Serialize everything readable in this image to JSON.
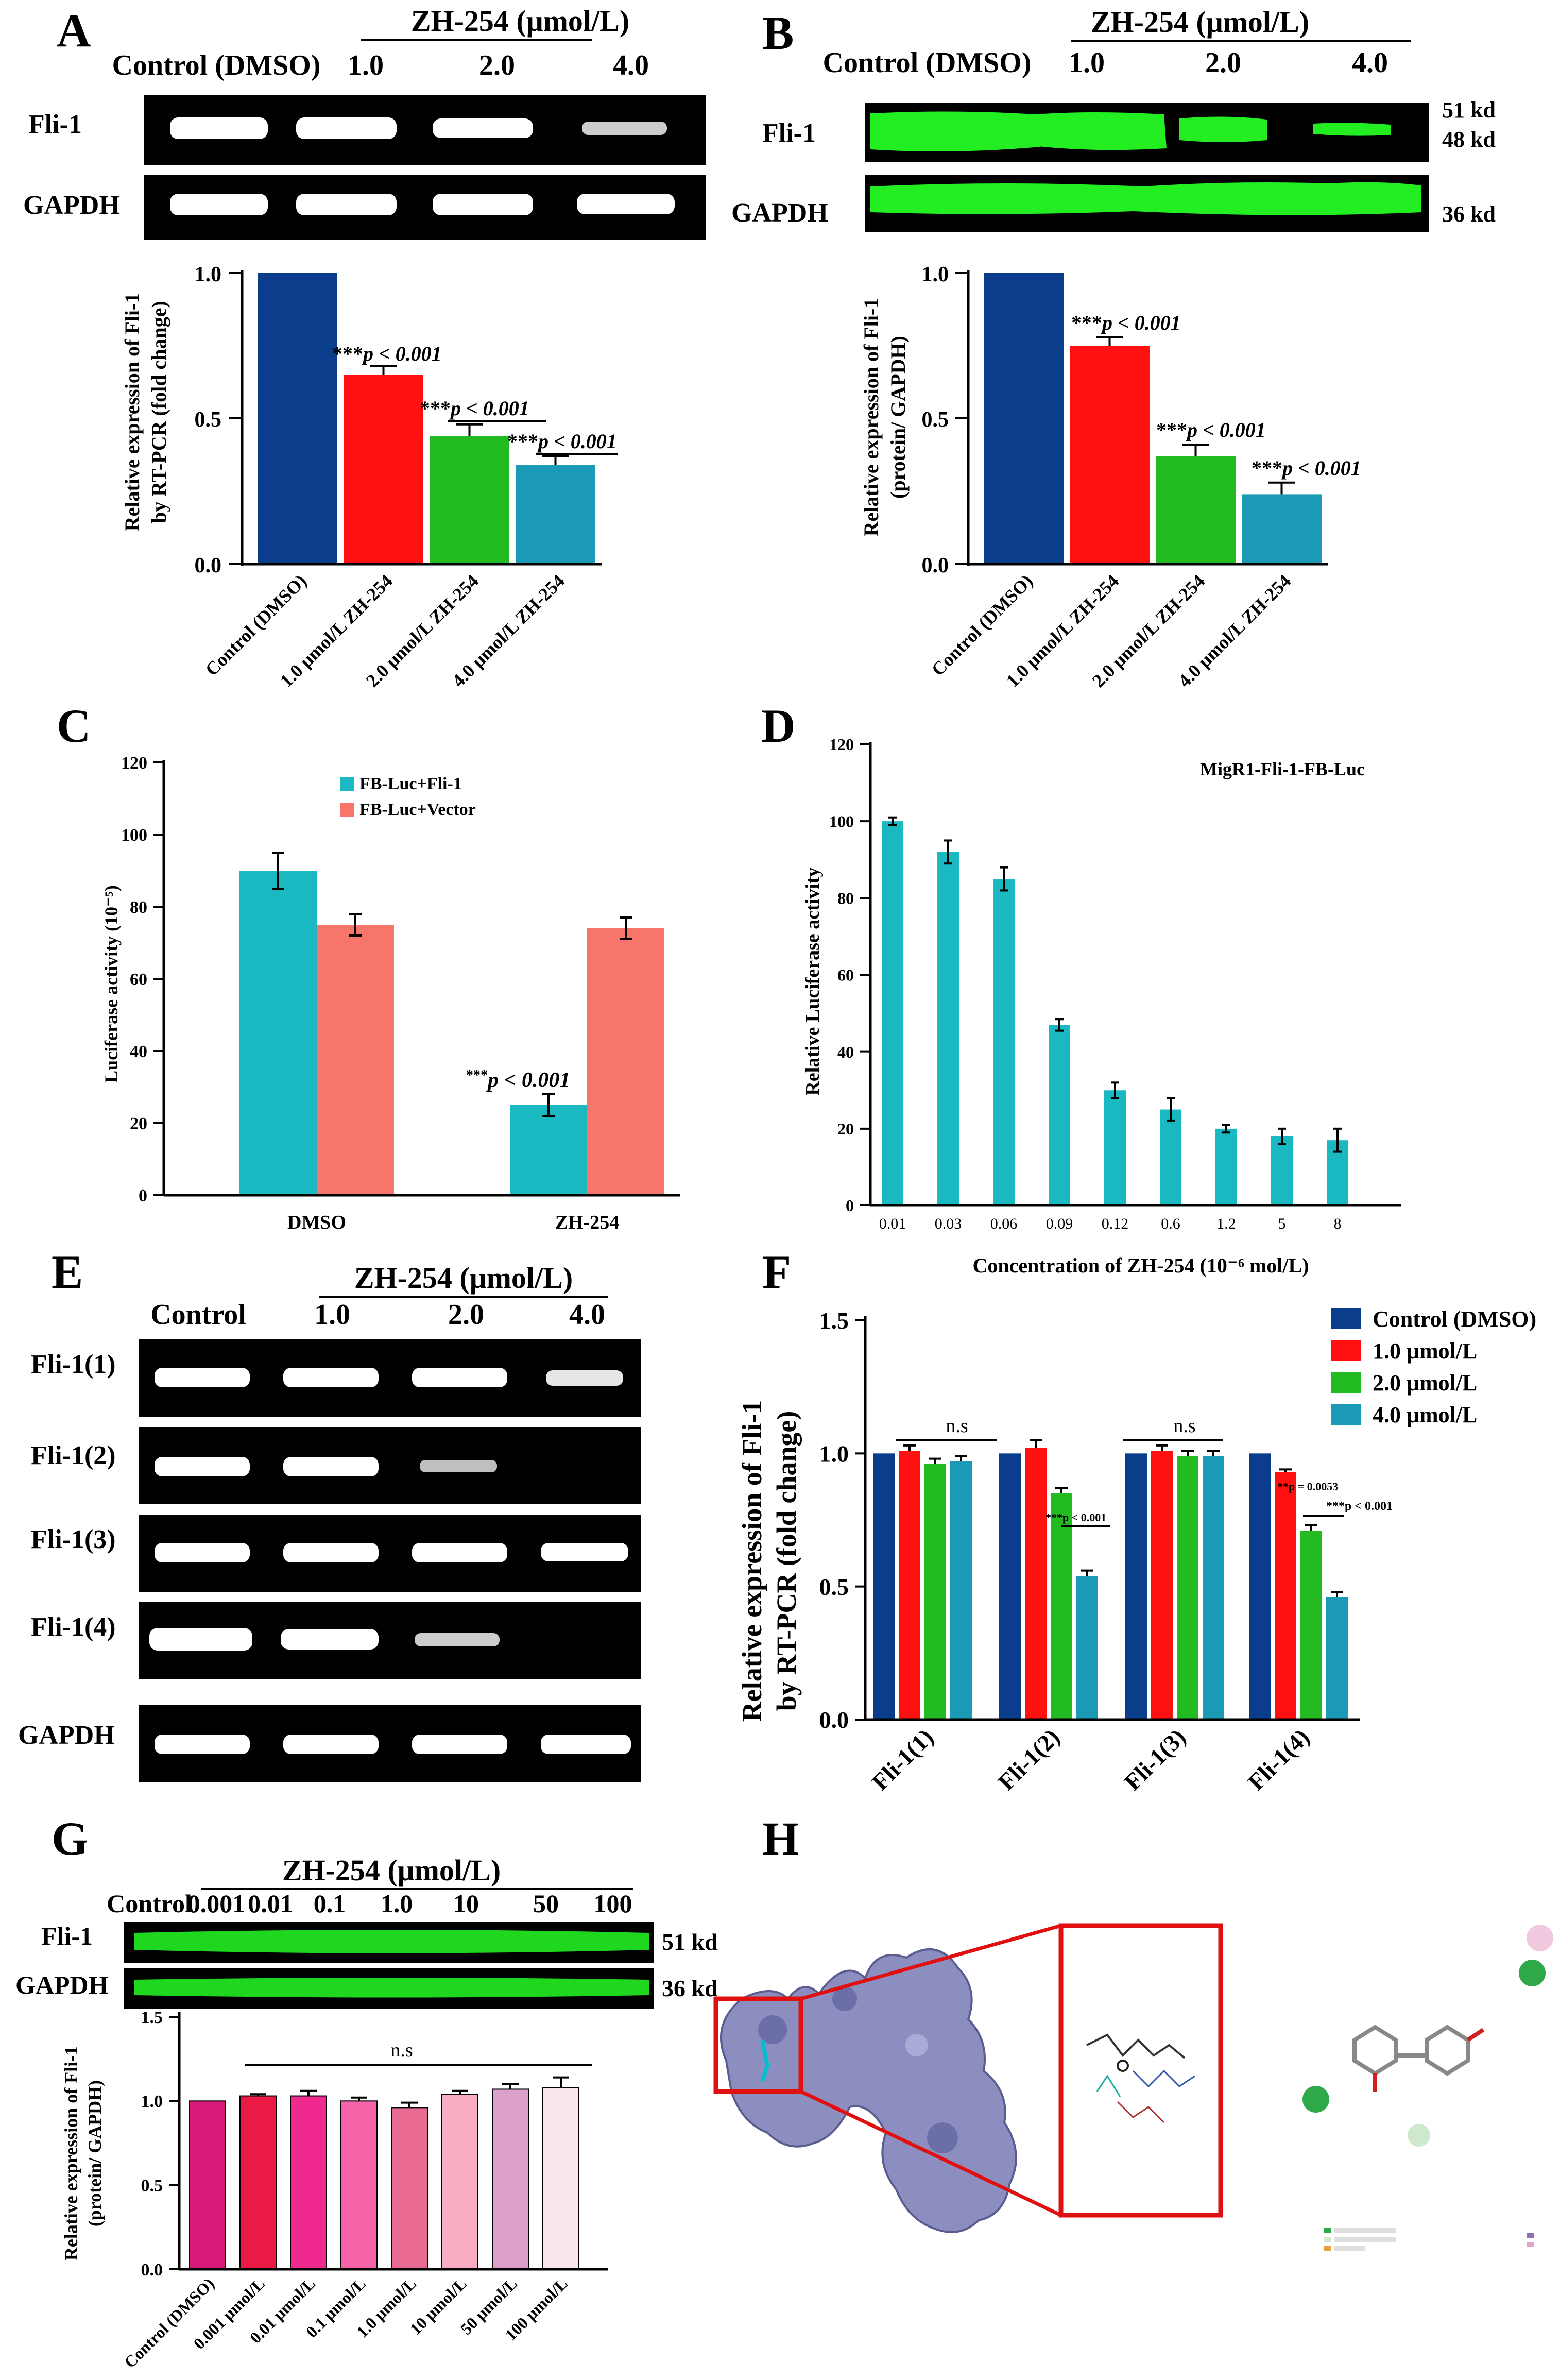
{
  "panels": {
    "A": {
      "letter": "A",
      "drug_header": "ZH-254 (μmol/L)",
      "lane_labels": [
        "Control (DMSO)",
        "1.0",
        "2.0",
        "4.0"
      ],
      "blot_labels": [
        "Fli-1",
        "GAPDH"
      ],
      "ylabel_lines": [
        "Relative expression of Fli-1",
        "by RT-PCR (fold change)"
      ],
      "sig_prefix": "***",
      "sig_text": [
        "p < 0.001",
        "p < 0.001",
        "p < 0.001"
      ]
    },
    "B": {
      "letter": "B",
      "drug_header": "ZH-254 (μmol/L)",
      "lane_labels": [
        "Control (DMSO)",
        "1.0",
        "2.0",
        "4.0"
      ],
      "blot_labels": [
        "Fli-1",
        "GAPDH"
      ],
      "kd_labels": [
        "51 kd",
        "48 kd",
        "36 kd"
      ],
      "ylabel_lines": [
        "Relative expression of Fli-1",
        "(protein/ GAPDH)"
      ],
      "sig_prefix": "***",
      "sig_text": [
        "p < 0.001",
        "p < 0.001",
        "p < 0.001"
      ]
    },
    "C": {
      "letter": "C",
      "ylabel": "Luciferase activity (10⁻⁵)",
      "sig_prefix": "***",
      "sig_text": "p < 0.001"
    },
    "D": {
      "letter": "D",
      "series_title": "MigR1-Fli-1-FB-Luc"
    },
    "E": {
      "letter": "E",
      "drug_header": "ZH-254 (μmol/L)",
      "lane_labels": [
        "Control",
        "1.0",
        "2.0",
        "4.0"
      ],
      "blot_labels": [
        "Fli-1(1)",
        "Fli-1(2)",
        "Fli-1(3)",
        "Fli-1(4)",
        "GAPDH"
      ]
    },
    "F": {
      "letter": "F",
      "ylabel_lines": [
        "Relative expression of Fli-1",
        "by RT-PCR (fold change)"
      ],
      "ns_label": "n.s",
      "annot_small": [
        "***p < 0.001",
        "**p = 0.0053",
        "***p < 0.001"
      ]
    },
    "G": {
      "letter": "G",
      "drug_header": "ZH-254 (μmol/L)",
      "lane_labels": [
        "Control",
        "0.001",
        "0.01",
        "0.1",
        "1.0",
        "10",
        "50",
        "100"
      ],
      "blot_labels": [
        "Fli-1",
        "GAPDH"
      ],
      "kd_labels": [
        "51 kd",
        "36 kd"
      ],
      "ylabel_lines": [
        "Relative expression of Fli-1",
        "(protein/ GAPDH)"
      ],
      "ns_label": "n.s"
    },
    "H": {
      "letter": "H"
    }
  },
  "colors": {
    "navy": "#0a3e8c",
    "red": "#ff1111",
    "green": "#22bb22",
    "teal": "#1a9ab5",
    "cyan": "#1ab8c0",
    "salmon": "#f7756a",
    "bright_green": "#22ee22",
    "protein_surface": "#8c8ec0"
  },
  "chart_data": [
    {
      "panel": "A",
      "type": "bar",
      "categories": [
        "Control (DMSO)",
        "1.0 μmol/L ZH-254",
        "2.0 μmol/L ZH-254",
        "4.0 μmol/L ZH-254"
      ],
      "values": [
        1.0,
        0.65,
        0.44,
        0.34
      ],
      "errors": [
        0,
        0.03,
        0.04,
        0.03
      ],
      "colors": [
        "#0a3e8c",
        "#ff1111",
        "#22bb22",
        "#1a9ab5"
      ],
      "ylim": [
        0,
        1.0
      ],
      "yticks": [
        "0.0",
        "0.5",
        "1.0"
      ]
    },
    {
      "panel": "B",
      "type": "bar",
      "categories": [
        "Control (DMSO)",
        "1.0 μmol/L ZH-254",
        "2.0 μmol/L ZH-254",
        "4.0 μmol/L ZH-254"
      ],
      "values": [
        1.0,
        0.75,
        0.37,
        0.24
      ],
      "errors": [
        0,
        0.03,
        0.04,
        0.04
      ],
      "colors": [
        "#0a3e8c",
        "#ff1111",
        "#22bb22",
        "#1a9ab5"
      ],
      "ylim": [
        0,
        1.0
      ],
      "yticks": [
        "0.0",
        "0.5",
        "1.0"
      ]
    },
    {
      "panel": "C",
      "type": "bar",
      "categories": [
        "DMSO",
        "ZH-254"
      ],
      "series": [
        {
          "name": "FB-Luc+Fli-1",
          "values": [
            90,
            25
          ],
          "errors": [
            5,
            3
          ],
          "color": "#1ab8c0"
        },
        {
          "name": "FB-Luc+Vector",
          "values": [
            75,
            74
          ],
          "errors": [
            3,
            3
          ],
          "color": "#f7756a"
        }
      ],
      "ylim": [
        0,
        120
      ],
      "yticks": [
        "0",
        "20",
        "40",
        "60",
        "80",
        "100",
        "120"
      ]
    },
    {
      "panel": "D",
      "type": "bar",
      "categories": [
        "0.01",
        "0.03",
        "0.06",
        "0.09",
        "0.12",
        "0.6",
        "1.2",
        "5",
        "8"
      ],
      "values": [
        100,
        92,
        85,
        47,
        30,
        25,
        20,
        18,
        17
      ],
      "errors": [
        1,
        3,
        3,
        1.5,
        2,
        3,
        1,
        2,
        3
      ],
      "color": "#1ab8c0",
      "xlabel": "Concentration of ZH-254 (10⁻⁶ mol/L)",
      "ylabel": "Relative Luciferase activity",
      "ylim": [
        0,
        120
      ],
      "yticks": [
        "0",
        "20",
        "40",
        "60",
        "80",
        "100",
        "120"
      ]
    },
    {
      "panel": "F",
      "type": "bar",
      "categories": [
        "Fli-1(1)",
        "Fli-1(2)",
        "Fli-1(3)",
        "Fli-1(4)"
      ],
      "series": [
        {
          "name": "Control (DMSO)",
          "values": [
            1.0,
            1.0,
            1.0,
            1.0
          ],
          "errors": [
            0,
            0,
            0,
            0
          ],
          "color": "#0a3e8c"
        },
        {
          "name": "1.0 μmol/L",
          "values": [
            1.01,
            1.02,
            1.01,
            0.93
          ],
          "errors": [
            0.02,
            0.03,
            0.02,
            0.01
          ],
          "color": "#ff1111"
        },
        {
          "name": "2.0 μmol/L",
          "values": [
            0.96,
            0.85,
            0.99,
            0.71
          ],
          "errors": [
            0.02,
            0.02,
            0.02,
            0.02
          ],
          "color": "#22bb22"
        },
        {
          "name": "4.0 μmol/L",
          "values": [
            0.97,
            0.54,
            0.99,
            0.46
          ],
          "errors": [
            0.02,
            0.02,
            0.02,
            0.02
          ],
          "color": "#1a9ab5"
        }
      ],
      "ylim": [
        0,
        1.5
      ],
      "yticks": [
        "0.0",
        "0.5",
        "1.0",
        "1.5"
      ]
    },
    {
      "panel": "G",
      "type": "bar",
      "categories": [
        "Control (DMSO)",
        "0.001 μmol/L",
        "0.01 μmol/L",
        "0.1 μmol/L",
        "1.0 μmol/L",
        "10 μmol/L",
        "50 μmol/L",
        "100 μmol/L"
      ],
      "values": [
        1.0,
        1.03,
        1.03,
        1.0,
        0.96,
        1.04,
        1.07,
        1.08
      ],
      "errors": [
        0,
        0.01,
        0.03,
        0.02,
        0.03,
        0.02,
        0.03,
        0.06
      ],
      "colors": [
        "#d81b7a",
        "#ea1a45",
        "#f0298f",
        "#f564a8",
        "#ea6b92",
        "#f7aec2",
        "#dca0cc",
        "#fbe6ee"
      ],
      "ylim": [
        0,
        1.5
      ],
      "yticks": [
        "0.0",
        "0.5",
        "1.0",
        "1.5"
      ]
    }
  ]
}
